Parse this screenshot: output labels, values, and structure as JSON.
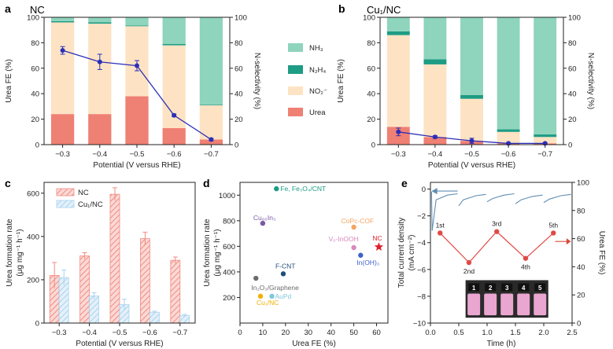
{
  "colors": {
    "nh3": "#8fd4bd",
    "n2h4": "#1e9c84",
    "no2": "#fde3c3",
    "urea": "#ef8074",
    "sel": "#2b2fb8",
    "nc_bar": "#f28b82",
    "cu_bar": "#a9d2ef",
    "arrow": "#d94b3f",
    "curr": "#5f8db4",
    "fe_red": "#e04a46"
  },
  "panels": {
    "a": {
      "label": "a",
      "title": "NC"
    },
    "b": {
      "label": "b",
      "title": "Cu₁/NC"
    },
    "c": {
      "label": "c"
    },
    "d": {
      "label": "d"
    },
    "e": {
      "label": "e"
    }
  },
  "legend_ab": [
    "NH₃",
    "N₂H₄",
    "NO₂⁻",
    "Urea"
  ],
  "chart_data": [
    {
      "id": "a",
      "type": "bar",
      "stacked": true,
      "title": "NC",
      "categories": [
        "−0.3",
        "−0.4",
        "−0.5",
        "−0.6",
        "−0.7"
      ],
      "series": [
        {
          "name": "Urea",
          "values": [
            24,
            24,
            38,
            13,
            4
          ]
        },
        {
          "name": "NO₂⁻",
          "values": [
            72,
            71,
            55,
            65,
            27
          ]
        },
        {
          "name": "N₂H₄",
          "values": [
            1,
            1,
            0.5,
            1,
            0.5
          ]
        },
        {
          "name": "NH₃",
          "values": [
            3,
            4,
            6.5,
            21,
            68.5
          ]
        }
      ],
      "selectivity": {
        "values": [
          74,
          65,
          62,
          23,
          4
        ],
        "err": [
          3,
          6,
          4,
          1,
          1
        ]
      },
      "xlabel": "Potential (V versus RHE)",
      "ylabel": "Urea FE (%)",
      "y2label": "N-selectivity (%)",
      "ylim": [
        0,
        100
      ],
      "yticks": [
        "0",
        "20",
        "40",
        "60",
        "80",
        "100"
      ]
    },
    {
      "id": "b",
      "type": "bar",
      "stacked": true,
      "title": "Cu₁/NC",
      "categories": [
        "−0.3",
        "−0.4",
        "−0.5",
        "−0.6",
        "−0.7"
      ],
      "series": [
        {
          "name": "Urea",
          "values": [
            14,
            6,
            3,
            1,
            1
          ]
        },
        {
          "name": "NO₂⁻",
          "values": [
            72,
            57,
            33,
            9,
            5
          ]
        },
        {
          "name": "N₂H₄",
          "values": [
            3,
            4,
            3,
            2,
            2
          ]
        },
        {
          "name": "NH₃",
          "values": [
            11,
            33,
            61,
            88,
            92
          ]
        }
      ],
      "selectivity": {
        "values": [
          10,
          6,
          3,
          1,
          1
        ],
        "err": [
          3,
          1,
          2,
          0.5,
          0.5
        ]
      },
      "xlabel": "Potential (V versus RHE)",
      "ylabel": "Urea FE (%)",
      "y2label": "N-selectivity (%)",
      "ylim": [
        0,
        100
      ],
      "yticks": [
        "0",
        "20",
        "40",
        "60",
        "80",
        "100"
      ]
    },
    {
      "id": "c",
      "type": "bar",
      "categories": [
        "−0.3",
        "−0.4",
        "−0.5",
        "−0.6",
        "−0.7"
      ],
      "series": [
        {
          "name": "NC",
          "values": [
            220,
            310,
            595,
            390,
            290
          ],
          "err": [
            60,
            15,
            30,
            30,
            15
          ]
        },
        {
          "name": "Cu₁/NC",
          "values": [
            210,
            125,
            85,
            50,
            35
          ],
          "err": [
            35,
            15,
            25,
            5,
            5
          ]
        }
      ],
      "xlabel": "Potential (V versus RHE)",
      "ylabel": "Urea formation rate",
      "ylabel_unit": "(μg mg⁻¹ h⁻¹)",
      "ylim": [
        0,
        650
      ],
      "yticks": [
        "0",
        "200",
        "400",
        "600"
      ]
    },
    {
      "id": "d",
      "type": "scatter",
      "points": [
        {
          "label": "Fe, Fe₃O₄/CNT",
          "x": 16,
          "y": 1050,
          "color": "#1e9c84"
        },
        {
          "label": "Cu₈₀In₃",
          "x": 10,
          "y": 780,
          "color": "#7b5aa6"
        },
        {
          "label": "CoPc-COF",
          "x": 50,
          "y": 750,
          "color": "#f4a460"
        },
        {
          "label": "Vₒ-InOOH",
          "x": 50,
          "y": 590,
          "color": "#d889c0"
        },
        {
          "label": "In(OH)₃",
          "x": 53,
          "y": 530,
          "color": "#3d63c9"
        },
        {
          "label": "F-CNT",
          "x": 19,
          "y": 385,
          "color": "#1f4e79"
        },
        {
          "label": "In₂O₃/Graphene",
          "x": 7,
          "y": 350,
          "color": "#6b6b6b"
        },
        {
          "label": "AuPd",
          "x": 14,
          "y": 210,
          "color": "#7fc7d9"
        },
        {
          "label": "Cu₁/NC",
          "x": 9,
          "y": 210,
          "color": "#f0b000"
        },
        {
          "label": "NC",
          "x": 61,
          "y": 595,
          "color": "#e0202e",
          "marker": "star"
        }
      ],
      "xlabel": "Urea FE (%)",
      "ylabel": "Urea formation rate",
      "ylabel_unit": "(μg mg⁻¹ h⁻¹)",
      "xlim": [
        0,
        65
      ],
      "ylim": [
        0,
        1100
      ],
      "xticks": [
        "0",
        "10",
        "20",
        "30",
        "40",
        "50",
        "60"
      ],
      "yticks": [
        "200",
        "400",
        "600",
        "800",
        "1000"
      ]
    },
    {
      "id": "e",
      "type": "line",
      "current": {
        "name": "Total current density",
        "segments": [
          [
            [
              0.03,
              -3.1
            ],
            [
              0.1,
              -0.8
            ],
            [
              0.3,
              -0.45
            ],
            [
              0.48,
              -0.35
            ]
          ],
          [
            [
              0.5,
              -1.25
            ],
            [
              0.58,
              -0.8
            ],
            [
              0.8,
              -0.5
            ],
            [
              0.98,
              -0.4
            ]
          ],
          [
            [
              1.0,
              -0.95
            ],
            [
              1.1,
              -0.7
            ],
            [
              1.3,
              -0.45
            ],
            [
              1.48,
              -0.35
            ]
          ],
          [
            [
              1.5,
              -1.1
            ],
            [
              1.6,
              -0.8
            ],
            [
              1.8,
              -0.55
            ],
            [
              1.98,
              -0.45
            ]
          ],
          [
            [
              2.0,
              -1.0
            ],
            [
              2.1,
              -0.75
            ],
            [
              2.3,
              -0.5
            ],
            [
              2.48,
              -0.4
            ]
          ]
        ]
      },
      "fe": {
        "name": "Urea FE",
        "x": [
          0.17,
          0.68,
          1.17,
          1.68,
          2.17
        ],
        "y": [
          64,
          43,
          65,
          46,
          64
        ]
      },
      "fe_labels": [
        "1st",
        "2nd",
        "3rd",
        "4th",
        "5th"
      ],
      "vials": [
        "1",
        "2",
        "3",
        "4",
        "5"
      ],
      "xlabel": "Time (h)",
      "ylabel": "Total current density",
      "ylabel_unit": "(mA cm⁻²)",
      "y2label": "Urea FE (%)",
      "xlim": [
        0,
        2.5
      ],
      "ylim": [
        -10,
        0.5
      ],
      "y2lim": [
        0,
        100
      ],
      "xticks": [
        "0.0",
        "0.5",
        "1.0",
        "1.5",
        "2.0",
        "2.5"
      ],
      "yticks": [
        "0",
        "−2",
        "−4",
        "−6",
        "−8",
        "−10"
      ],
      "y2ticks": [
        "0",
        "20",
        "40",
        "60",
        "80",
        "100"
      ]
    }
  ]
}
